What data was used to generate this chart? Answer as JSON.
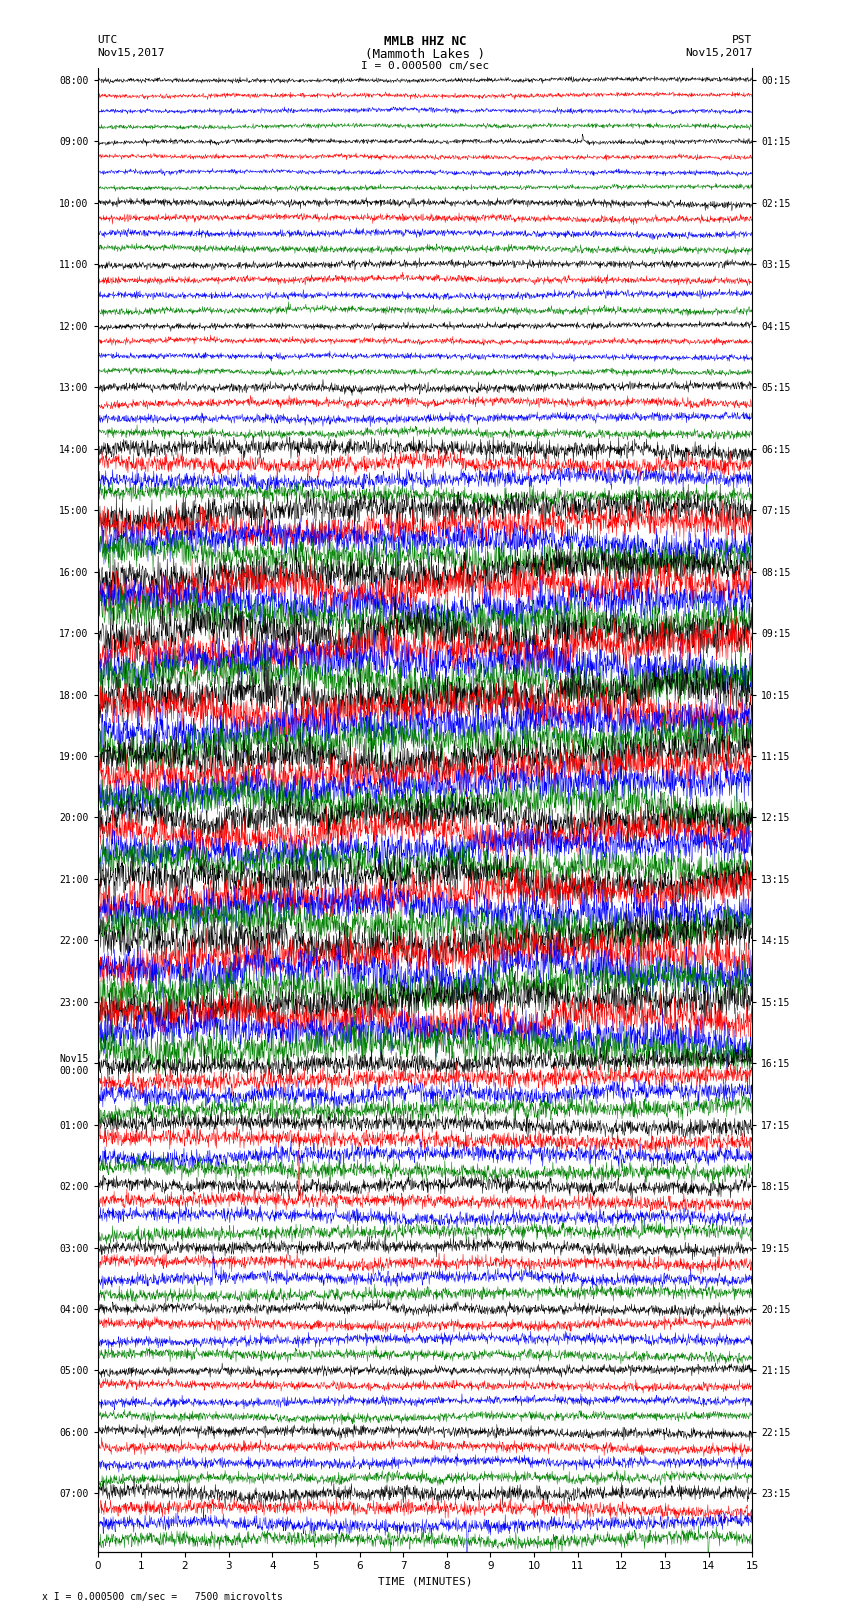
{
  "title_line1": "MMLB HHZ NC",
  "title_line2": "(Mammoth Lakes )",
  "title_line3": "I = 0.000500 cm/sec",
  "label_utc": "UTC",
  "label_utc_date": "Nov15,2017",
  "label_pst": "PST",
  "label_pst_date": "Nov15,2017",
  "xlabel": "TIME (MINUTES)",
  "footer": "x I = 0.000500 cm/sec =   7500 microvolts",
  "left_hour_labels": [
    "08:00",
    "09:00",
    "10:00",
    "11:00",
    "12:00",
    "13:00",
    "14:00",
    "15:00",
    "16:00",
    "17:00",
    "18:00",
    "19:00",
    "20:00",
    "21:00",
    "22:00",
    "23:00",
    "Nov15\n00:00",
    "01:00",
    "02:00",
    "03:00",
    "04:00",
    "05:00",
    "06:00",
    "07:00"
  ],
  "right_hour_labels": [
    "00:15",
    "01:15",
    "02:15",
    "03:15",
    "04:15",
    "05:15",
    "06:15",
    "07:15",
    "08:15",
    "09:15",
    "10:15",
    "11:15",
    "12:15",
    "13:15",
    "14:15",
    "15:15",
    "16:15",
    "17:15",
    "18:15",
    "19:15",
    "20:15",
    "21:15",
    "22:15",
    "23:15"
  ],
  "trace_colors": [
    "black",
    "red",
    "blue",
    "green"
  ],
  "n_hours": 24,
  "traces_per_hour": 4,
  "n_points": 1800,
  "x_min": 0,
  "x_max": 15,
  "background_color": "white",
  "noise_seed": 12345,
  "amplitude_by_hour": [
    0.08,
    0.08,
    0.12,
    0.12,
    0.1,
    0.15,
    0.3,
    0.55,
    0.65,
    0.7,
    0.7,
    0.65,
    0.6,
    0.65,
    0.7,
    0.65,
    0.35,
    0.3,
    0.25,
    0.22,
    0.18,
    0.15,
    0.18,
    0.25
  ]
}
